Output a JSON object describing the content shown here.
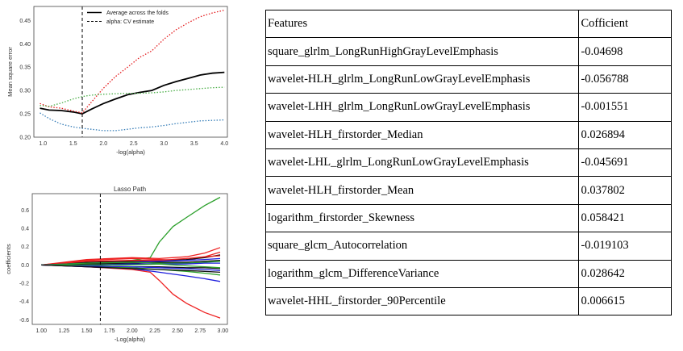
{
  "chart_data": [
    {
      "type": "line",
      "title": "",
      "xlabel": "-log(alpha)",
      "ylabel": "Mean square error",
      "xlim": [
        0.85,
        4.05
      ],
      "ylim": [
        0.2,
        0.48
      ],
      "xticks": [
        "1.0",
        "1.5",
        "2.0",
        "2.5",
        "3.0",
        "3.5",
        "4.0"
      ],
      "yticks": [
        "0.20",
        "0.25",
        "0.30",
        "0.35",
        "0.40",
        "0.45"
      ],
      "grid": false,
      "legend_position": "top-right",
      "legend": [
        {
          "label": "Average across the folds",
          "style": "solid"
        },
        {
          "label": "alpha: CV estimate",
          "style": "dashed"
        }
      ],
      "vline": 1.65,
      "series": [
        {
          "name": "Average across the folds",
          "color": "#000000",
          "style": "solid",
          "x": [
            0.95,
            1.1,
            1.3,
            1.5,
            1.65,
            1.8,
            2.0,
            2.2,
            2.4,
            2.6,
            2.8,
            3.0,
            3.2,
            3.4,
            3.6,
            3.8,
            4.0
          ],
          "y": [
            0.262,
            0.258,
            0.257,
            0.254,
            0.25,
            0.26,
            0.272,
            0.282,
            0.291,
            0.296,
            0.3,
            0.311,
            0.319,
            0.326,
            0.333,
            0.337,
            0.339
          ]
        },
        {
          "color": "#e41a1c",
          "style": "dotted",
          "x": [
            0.95,
            1.1,
            1.3,
            1.5,
            1.65,
            1.8,
            2.0,
            2.2,
            2.4,
            2.6,
            2.8,
            3.0,
            3.2,
            3.4,
            3.6,
            3.8,
            4.0
          ],
          "y": [
            0.272,
            0.265,
            0.262,
            0.256,
            0.252,
            0.275,
            0.305,
            0.33,
            0.35,
            0.371,
            0.385,
            0.41,
            0.43,
            0.445,
            0.458,
            0.466,
            0.472
          ]
        },
        {
          "color": "#4daf4a",
          "style": "dotted",
          "x": [
            0.95,
            1.1,
            1.3,
            1.5,
            1.65,
            1.8,
            2.0,
            2.2,
            2.4,
            2.6,
            2.8,
            3.0,
            3.2,
            3.4,
            3.6,
            3.8,
            4.0
          ],
          "y": [
            0.268,
            0.266,
            0.273,
            0.282,
            0.287,
            0.29,
            0.292,
            0.293,
            0.294,
            0.294,
            0.295,
            0.297,
            0.3,
            0.302,
            0.304,
            0.306,
            0.307
          ]
        },
        {
          "color": "#377eb8",
          "style": "dotted",
          "x": [
            0.95,
            1.1,
            1.3,
            1.5,
            1.65,
            1.8,
            2.0,
            2.2,
            2.4,
            2.6,
            2.8,
            3.0,
            3.2,
            3.4,
            3.6,
            3.8,
            4.0
          ],
          "y": [
            0.252,
            0.24,
            0.228,
            0.222,
            0.219,
            0.217,
            0.214,
            0.214,
            0.217,
            0.22,
            0.222,
            0.225,
            0.229,
            0.232,
            0.235,
            0.236,
            0.237
          ]
        }
      ]
    },
    {
      "type": "line",
      "title": "Lasso Path",
      "xlabel": "-Log(alpha)",
      "ylabel": "coefficients",
      "xlim": [
        0.9,
        3.05
      ],
      "ylim": [
        -0.65,
        0.78
      ],
      "xticks": [
        "1.00",
        "1.25",
        "1.50",
        "1.75",
        "2.00",
        "2.25",
        "2.50",
        "2.75",
        "3.00"
      ],
      "yticks": [
        "-0.6",
        "-0.4",
        "-0.2",
        "0.0",
        "0.2",
        "0.4",
        "0.6"
      ],
      "grid": false,
      "vline": 1.65,
      "series": [
        {
          "color": "#2ca02c",
          "x": [
            1.0,
            1.5,
            2.0,
            2.2,
            2.3,
            2.45,
            2.6,
            2.8,
            2.97
          ],
          "y": [
            0.0,
            0.02,
            0.05,
            0.08,
            0.25,
            0.42,
            0.52,
            0.65,
            0.74
          ]
        },
        {
          "color": "#ee2222",
          "x": [
            1.0,
            1.5,
            2.0,
            2.2,
            2.3,
            2.45,
            2.6,
            2.8,
            2.97
          ],
          "y": [
            0.0,
            -0.02,
            -0.05,
            -0.08,
            -0.17,
            -0.32,
            -0.42,
            -0.52,
            -0.58
          ]
        },
        {
          "color": "#1f1fdd",
          "x": [
            1.0,
            1.5,
            2.0,
            2.3,
            2.6,
            2.8,
            2.97
          ],
          "y": [
            0.0,
            -0.02,
            -0.04,
            -0.08,
            -0.12,
            -0.15,
            -0.18
          ]
        },
        {
          "color": "#2ca02c",
          "x": [
            1.0,
            1.5,
            2.0,
            2.3,
            2.6,
            2.8,
            2.97
          ],
          "y": [
            0.0,
            -0.01,
            -0.03,
            -0.05,
            -0.07,
            -0.09,
            -0.11
          ]
        },
        {
          "color": "#ee2222",
          "x": [
            1.0,
            1.5,
            2.0,
            2.3,
            2.6,
            2.8,
            2.97
          ],
          "y": [
            0.0,
            0.06,
            0.08,
            0.07,
            0.09,
            0.13,
            0.19
          ]
        },
        {
          "color": "#ee2222",
          "x": [
            1.0,
            1.5,
            2.0,
            2.3,
            2.6,
            2.8,
            2.97
          ],
          "y": [
            0.0,
            0.05,
            0.07,
            0.06,
            0.05,
            0.09,
            0.14
          ]
        },
        {
          "color": "#111111",
          "x": [
            1.0,
            1.5,
            2.0,
            2.3,
            2.6,
            2.8,
            2.97
          ],
          "y": [
            0.0,
            0.03,
            0.04,
            0.05,
            0.06,
            0.08,
            0.11
          ]
        },
        {
          "color": "#ee2222",
          "x": [
            1.0,
            1.5,
            2.0,
            2.3,
            2.6,
            2.8,
            2.97
          ],
          "y": [
            0.0,
            0.04,
            0.05,
            0.05,
            0.07,
            0.09,
            0.1
          ]
        },
        {
          "color": "#1f1fdd",
          "x": [
            1.0,
            1.5,
            2.0,
            2.3,
            2.6,
            2.8,
            2.97
          ],
          "y": [
            0.0,
            0.02,
            0.03,
            0.04,
            0.05,
            0.06,
            0.07
          ]
        },
        {
          "color": "#111111",
          "x": [
            1.0,
            1.5,
            2.0,
            2.3,
            2.6,
            2.8,
            2.97
          ],
          "y": [
            0.0,
            0.01,
            0.02,
            0.03,
            0.03,
            0.04,
            0.05
          ]
        },
        {
          "color": "#2ca02c",
          "x": [
            1.0,
            1.5,
            2.0,
            2.3,
            2.6,
            2.8,
            2.97
          ],
          "y": [
            0.0,
            0.02,
            0.03,
            0.02,
            0.02,
            0.03,
            0.04
          ]
        },
        {
          "color": "#1f1fdd",
          "x": [
            1.0,
            1.5,
            2.0,
            2.3,
            2.6,
            2.8,
            2.97
          ],
          "y": [
            0.0,
            0.0,
            0.01,
            0.01,
            0.01,
            0.02,
            0.02
          ]
        },
        {
          "color": "#111111",
          "x": [
            1.0,
            1.5,
            2.0,
            2.3,
            2.6,
            2.8,
            2.97
          ],
          "y": [
            0.0,
            -0.01,
            -0.02,
            -0.02,
            -0.03,
            -0.03,
            -0.04
          ]
        },
        {
          "color": "#1f1fdd",
          "x": [
            1.0,
            1.5,
            2.0,
            2.3,
            2.6,
            2.8,
            2.97
          ],
          "y": [
            0.0,
            -0.01,
            -0.02,
            -0.03,
            -0.04,
            -0.05,
            -0.06
          ]
        },
        {
          "color": "#2ca02c",
          "x": [
            1.0,
            1.5,
            2.0,
            2.3,
            2.6,
            2.8,
            2.97
          ],
          "y": [
            0.0,
            0.0,
            0.0,
            0.01,
            -0.01,
            -0.02,
            -0.03
          ]
        },
        {
          "color": "#111111",
          "x": [
            1.0,
            1.5,
            2.0,
            2.3,
            2.6,
            2.8,
            2.97
          ],
          "y": [
            0.0,
            -0.02,
            -0.04,
            -0.05,
            -0.06,
            -0.07,
            -0.08
          ]
        }
      ]
    },
    {
      "type": "table",
      "columns": [
        "Features",
        "Cofficient"
      ],
      "rows": [
        [
          "square_glrlm_LongRunHighGrayLevelEmphasis",
          "-0.04698"
        ],
        [
          "wavelet-HLH_glrlm_LongRunLowGrayLevelEmphasis",
          "-0.056788"
        ],
        [
          "wavelet-LHH_glrlm_LongRunLowGrayLevelEmphasis",
          "-0.001551"
        ],
        [
          "wavelet-HLH_firstorder_Median",
          "0.026894"
        ],
        [
          "wavelet-LHL_glrlm_LongRunLowGrayLevelEmphasis",
          "-0.045691"
        ],
        [
          "wavelet-HLH_firstorder_Mean",
          "0.037802"
        ],
        [
          "logarithm_firstorder_Skewness",
          "0.058421"
        ],
        [
          "square_glcm_Autocorrelation",
          "-0.019103"
        ],
        [
          "logarithm_glcm_DifferenceVariance",
          "0.028642"
        ],
        [
          "wavelet-HHL_firstorder_90Percentile",
          "0.006615"
        ]
      ]
    }
  ]
}
